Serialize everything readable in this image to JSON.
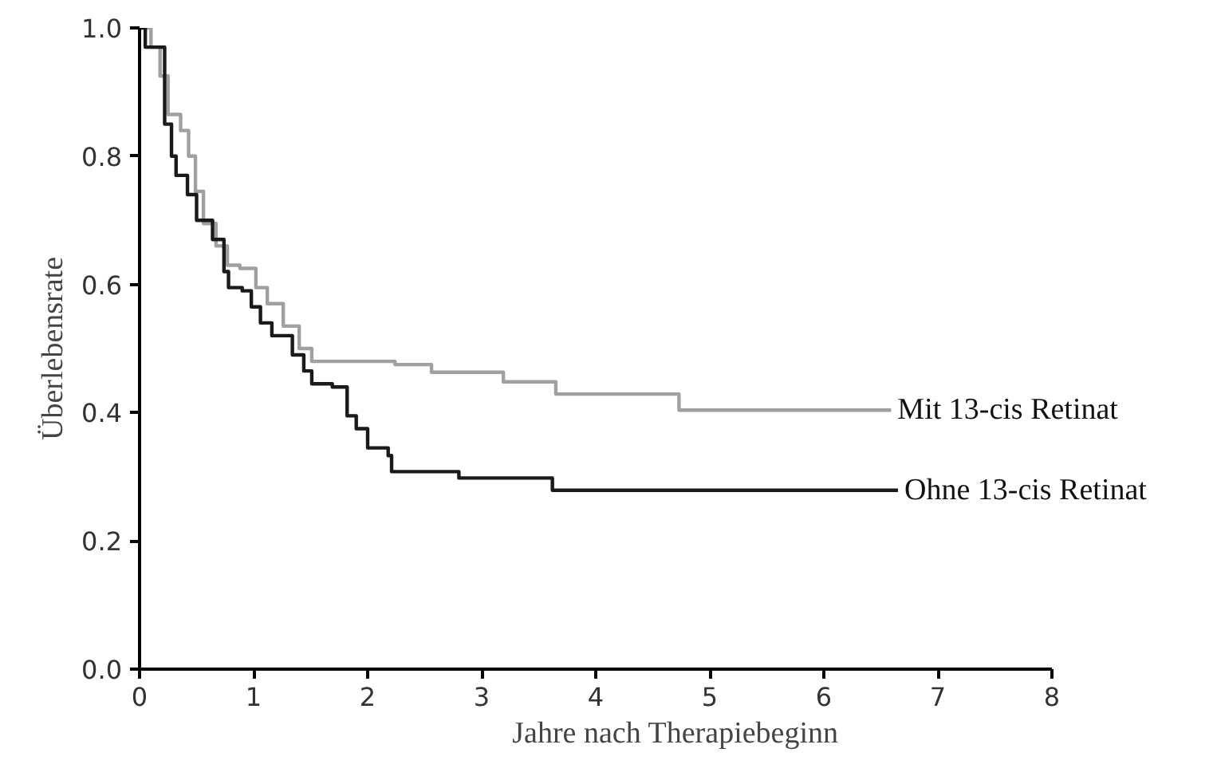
{
  "chart_data": {
    "type": "step",
    "xlabel": "Jahre nach Therapiebeginn",
    "ylabel": "Überlebensrate",
    "xlim": [
      0,
      8
    ],
    "ylim": [
      0,
      1
    ],
    "xticks": [
      0,
      1,
      2,
      3,
      4,
      5,
      6,
      7,
      8
    ],
    "yticks": [
      {
        "value": 0,
        "label": "0.0"
      },
      {
        "value": 0.2,
        "label": "0.2"
      },
      {
        "value": 0.4,
        "label": "0.4"
      },
      {
        "value": 0.6,
        "label": "0.6"
      },
      {
        "value": 0.8,
        "label": "0.8"
      },
      {
        "value": 1,
        "label": "1.0"
      }
    ],
    "grid": false,
    "marker": "none",
    "line_style": "solid",
    "series": [
      {
        "name": "Mit 13-cis Retinat",
        "color": "#a0a0a0",
        "x": [
          0,
          0.1,
          0.18,
          0.25,
          0.36,
          0.43,
          0.49,
          0.56,
          0.67,
          0.77,
          0.88,
          1.02,
          1.12,
          1.26,
          1.4,
          1.51,
          2.24,
          2.56,
          3.19,
          3.65,
          4.73,
          6.59
        ],
        "values": [
          1.0,
          0.97,
          0.925,
          0.865,
          0.84,
          0.8,
          0.745,
          0.695,
          0.66,
          0.63,
          0.625,
          0.595,
          0.57,
          0.535,
          0.5,
          0.48,
          0.475,
          0.463,
          0.448,
          0.429,
          0.404,
          0.404
        ]
      },
      {
        "name": "Ohne 13-cis Retinat",
        "color": "#1a1a1a",
        "x": [
          0,
          0.05,
          0.22,
          0.28,
          0.32,
          0.42,
          0.5,
          0.64,
          0.74,
          0.78,
          0.9,
          0.98,
          1.06,
          1.16,
          1.34,
          1.44,
          1.51,
          1.69,
          1.82,
          1.9,
          2.0,
          2.18,
          2.21,
          2.8,
          3.62,
          6.65
        ],
        "values": [
          1.0,
          0.97,
          0.85,
          0.8,
          0.77,
          0.74,
          0.7,
          0.67,
          0.62,
          0.595,
          0.59,
          0.565,
          0.54,
          0.52,
          0.49,
          0.465,
          0.445,
          0.44,
          0.395,
          0.375,
          0.345,
          0.333,
          0.308,
          0.298,
          0.279,
          0.279
        ]
      }
    ]
  }
}
